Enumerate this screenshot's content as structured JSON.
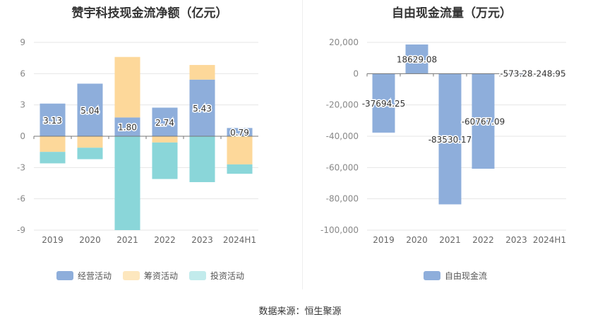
{
  "chart_data": [
    {
      "type": "bar",
      "stacked": true,
      "title": "赞宇科技现金流净额（亿元）",
      "categories": [
        "2019",
        "2020",
        "2021",
        "2022",
        "2023",
        "2024H1"
      ],
      "series": [
        {
          "name": "经营活动",
          "color": "#8eaedb",
          "values": [
            3.13,
            5.04,
            1.8,
            2.74,
            5.43,
            0.79
          ]
        },
        {
          "name": "筹资活动",
          "color": "#fdd89a",
          "values": [
            -1.5,
            -1.1,
            5.8,
            -0.6,
            1.4,
            -2.7
          ]
        },
        {
          "name": "投资活动",
          "color": "#8ad6d9",
          "values": [
            -1.1,
            -1.1,
            -9.0,
            -3.5,
            -4.4,
            -0.9
          ]
        }
      ],
      "data_labels": [
        "3.13",
        "5.04",
        "1.80",
        "2.74",
        "5.43",
        "0.79"
      ],
      "ylim": [
        -9,
        9
      ],
      "yticks": [
        "9",
        "6",
        "3",
        "0",
        "-3",
        "-6",
        "-9"
      ],
      "grid": true,
      "legend": "bottom"
    },
    {
      "type": "bar",
      "title": "自由现金流量（万元）",
      "categories": [
        "2019",
        "2020",
        "2021",
        "2022",
        "2023",
        "2024H1"
      ],
      "series": [
        {
          "name": "自由现金流",
          "color": "#8eaedb",
          "values": [
            -37694.25,
            18629.08,
            -83530.17,
            -60767.09,
            -573.28,
            -248.95
          ]
        }
      ],
      "data_labels": [
        "-37694.25",
        "18629.08",
        "-83530.17",
        "-60767.09",
        "-573.28",
        "-248.95"
      ],
      "ylim": [
        -100000,
        20000
      ],
      "yticks": [
        "20,000",
        "0",
        "-20,000",
        "-40,000",
        "-60,000",
        "-80,000",
        "-100,000"
      ],
      "grid": true,
      "legend": "bottom"
    }
  ],
  "source": "数据来源：恒生聚源"
}
